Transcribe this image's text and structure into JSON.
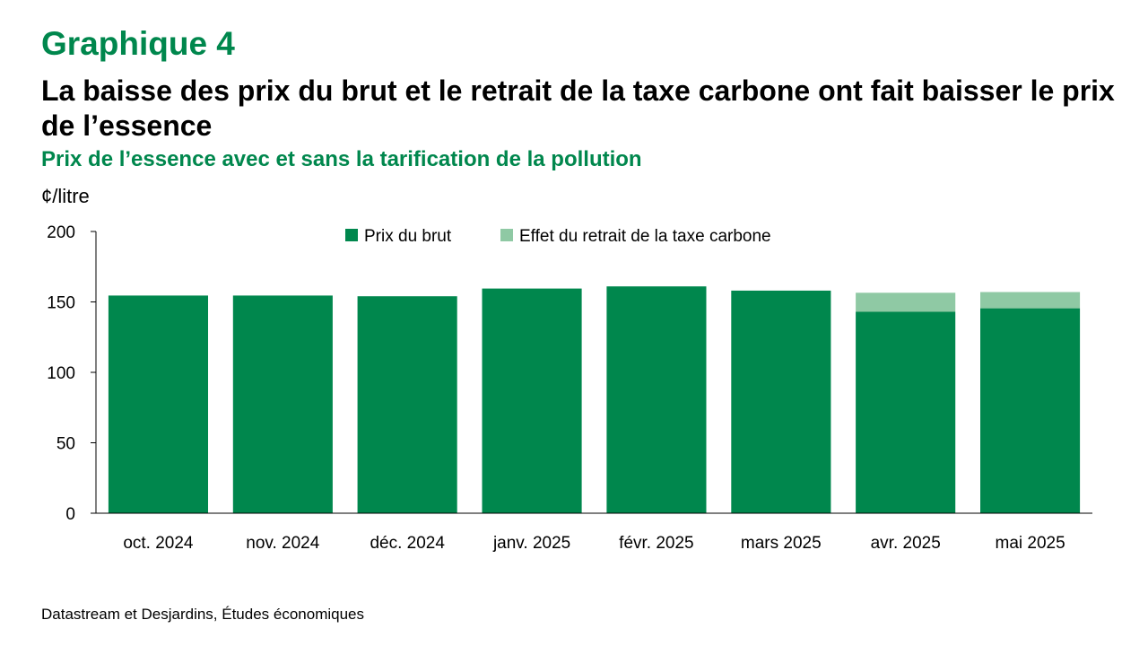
{
  "header": {
    "graph_label": "Graphique 4",
    "title": "La baisse des prix du brut et le retrait de la taxe carbone ont fait baisser le prix de l’essence",
    "subtitle": "Prix de l’essence avec et sans la tarification de la pollution",
    "y_unit": "¢/litre"
  },
  "source": "Datastream et Desjardins, Études économiques",
  "colors": {
    "crude": "#00874d",
    "carbon_tax": "#8fc9a4",
    "axis": "#000000"
  },
  "chart_data": {
    "type": "bar",
    "stacked": true,
    "title": "Prix de l’essence avec et sans la tarification de la pollution",
    "xlabel": "",
    "ylabel": "¢/litre",
    "ylim": [
      0,
      200
    ],
    "yticks": [
      0,
      50,
      100,
      150,
      200
    ],
    "legend_position": "top",
    "categories": [
      "oct. 2024",
      "nov. 2024",
      "déc. 2024",
      "janv. 2025",
      "févr. 2025",
      "mars 2025",
      "avr. 2025",
      "mai 2025"
    ],
    "series": [
      {
        "name": "Prix du brut",
        "color": "#00874d",
        "values": [
          154.5,
          154.5,
          154,
          159.5,
          161,
          158,
          143,
          145.5
        ]
      },
      {
        "name": "Effet du retrait de la taxe carbone",
        "color": "#8fc9a4",
        "values": [
          0,
          0,
          0,
          0,
          0,
          0,
          13.5,
          11.5
        ]
      }
    ]
  }
}
